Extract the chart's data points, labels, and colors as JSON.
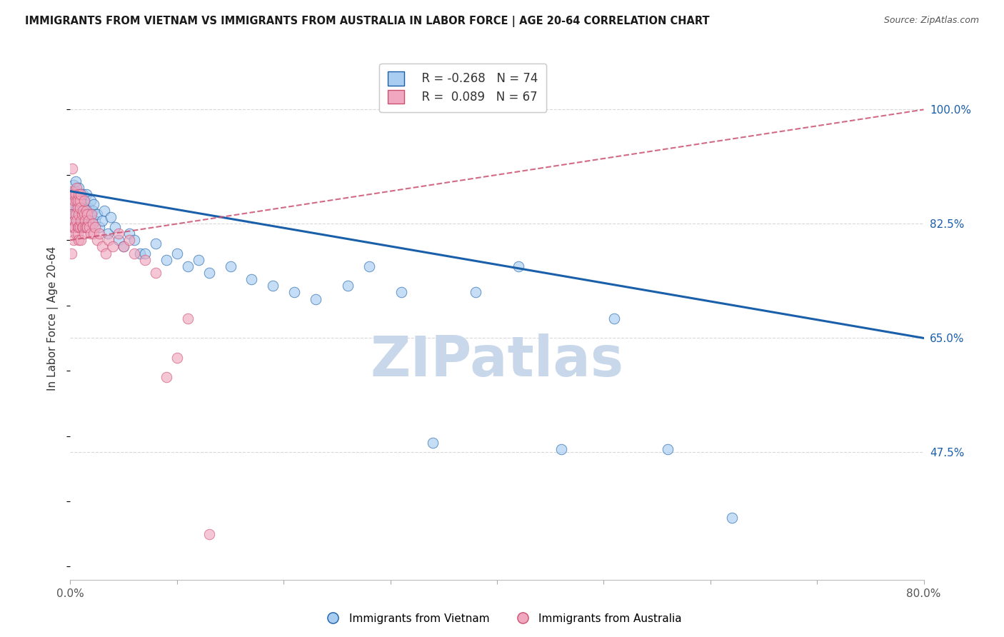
{
  "title": "IMMIGRANTS FROM VIETNAM VS IMMIGRANTS FROM AUSTRALIA IN LABOR FORCE | AGE 20-64 CORRELATION CHART",
  "source": "Source: ZipAtlas.com",
  "ylabel": "In Labor Force | Age 20-64",
  "xlim": [
    0.0,
    0.8
  ],
  "ylim": [
    0.28,
    1.08
  ],
  "yticks_right": [
    0.475,
    0.65,
    0.825,
    1.0
  ],
  "yticklabels_right": [
    "47.5%",
    "65.0%",
    "82.5%",
    "100.0%"
  ],
  "legend_r_vietnam": "-0.268",
  "legend_n_vietnam": "74",
  "legend_r_australia": "0.089",
  "legend_n_australia": "67",
  "color_vietnam": "#a8cdf0",
  "color_australia": "#f0a8c0",
  "color_trend_vietnam": "#1a5faa",
  "color_trend_australia": "#cc5070",
  "watermark": "ZIPatlas",
  "watermark_color": "#c8d8ea",
  "trend_vietnam_y0": 0.875,
  "trend_vietnam_y1": 0.65,
  "trend_australia_y0": 0.8,
  "trend_australia_y1": 1.0,
  "vietnam_x": [
    0.001,
    0.002,
    0.003,
    0.003,
    0.004,
    0.004,
    0.005,
    0.005,
    0.005,
    0.006,
    0.006,
    0.006,
    0.007,
    0.007,
    0.008,
    0.008,
    0.008,
    0.009,
    0.009,
    0.01,
    0.01,
    0.01,
    0.011,
    0.011,
    0.012,
    0.012,
    0.013,
    0.013,
    0.014,
    0.014,
    0.015,
    0.015,
    0.016,
    0.017,
    0.018,
    0.019,
    0.02,
    0.021,
    0.022,
    0.023,
    0.025,
    0.027,
    0.03,
    0.032,
    0.035,
    0.038,
    0.042,
    0.045,
    0.05,
    0.055,
    0.06,
    0.065,
    0.07,
    0.08,
    0.09,
    0.1,
    0.11,
    0.12,
    0.13,
    0.15,
    0.17,
    0.19,
    0.21,
    0.23,
    0.26,
    0.28,
    0.31,
    0.34,
    0.38,
    0.42,
    0.46,
    0.51,
    0.56,
    0.62
  ],
  "vietnam_y": [
    0.855,
    0.87,
    0.82,
    0.885,
    0.84,
    0.875,
    0.86,
    0.83,
    0.89,
    0.85,
    0.875,
    0.84,
    0.83,
    0.865,
    0.82,
    0.855,
    0.88,
    0.84,
    0.87,
    0.825,
    0.86,
    0.84,
    0.85,
    0.83,
    0.845,
    0.87,
    0.835,
    0.86,
    0.83,
    0.855,
    0.84,
    0.87,
    0.825,
    0.85,
    0.84,
    0.86,
    0.835,
    0.845,
    0.855,
    0.83,
    0.84,
    0.82,
    0.83,
    0.845,
    0.81,
    0.835,
    0.82,
    0.8,
    0.79,
    0.81,
    0.8,
    0.78,
    0.78,
    0.795,
    0.77,
    0.78,
    0.76,
    0.77,
    0.75,
    0.76,
    0.74,
    0.73,
    0.72,
    0.71,
    0.73,
    0.76,
    0.72,
    0.49,
    0.72,
    0.76,
    0.48,
    0.68,
    0.48,
    0.375
  ],
  "australia_x": [
    0.001,
    0.001,
    0.002,
    0.002,
    0.002,
    0.003,
    0.003,
    0.003,
    0.004,
    0.004,
    0.004,
    0.005,
    0.005,
    0.005,
    0.006,
    0.006,
    0.006,
    0.007,
    0.007,
    0.007,
    0.007,
    0.008,
    0.008,
    0.008,
    0.008,
    0.009,
    0.009,
    0.009,
    0.01,
    0.01,
    0.01,
    0.011,
    0.011,
    0.012,
    0.012,
    0.013,
    0.013,
    0.013,
    0.014,
    0.014,
    0.015,
    0.015,
    0.016,
    0.016,
    0.017,
    0.018,
    0.019,
    0.02,
    0.021,
    0.022,
    0.023,
    0.025,
    0.027,
    0.03,
    0.033,
    0.036,
    0.04,
    0.045,
    0.05,
    0.055,
    0.06,
    0.07,
    0.08,
    0.09,
    0.1,
    0.11,
    0.13
  ],
  "australia_y": [
    0.855,
    0.78,
    0.82,
    0.875,
    0.91,
    0.84,
    0.8,
    0.87,
    0.83,
    0.86,
    0.82,
    0.84,
    0.87,
    0.81,
    0.86,
    0.83,
    0.88,
    0.85,
    0.82,
    0.86,
    0.81,
    0.84,
    0.87,
    0.82,
    0.8,
    0.86,
    0.82,
    0.85,
    0.83,
    0.8,
    0.87,
    0.84,
    0.82,
    0.845,
    0.82,
    0.84,
    0.81,
    0.86,
    0.83,
    0.82,
    0.845,
    0.82,
    0.84,
    0.82,
    0.83,
    0.82,
    0.81,
    0.84,
    0.825,
    0.81,
    0.82,
    0.8,
    0.81,
    0.79,
    0.78,
    0.8,
    0.79,
    0.81,
    0.79,
    0.8,
    0.78,
    0.77,
    0.75,
    0.59,
    0.62,
    0.68,
    0.35
  ],
  "legend_label_vietnam": "Immigrants from Vietnam",
  "legend_label_australia": "Immigrants from Australia",
  "background_color": "#ffffff",
  "grid_color": "#d8d8d8"
}
